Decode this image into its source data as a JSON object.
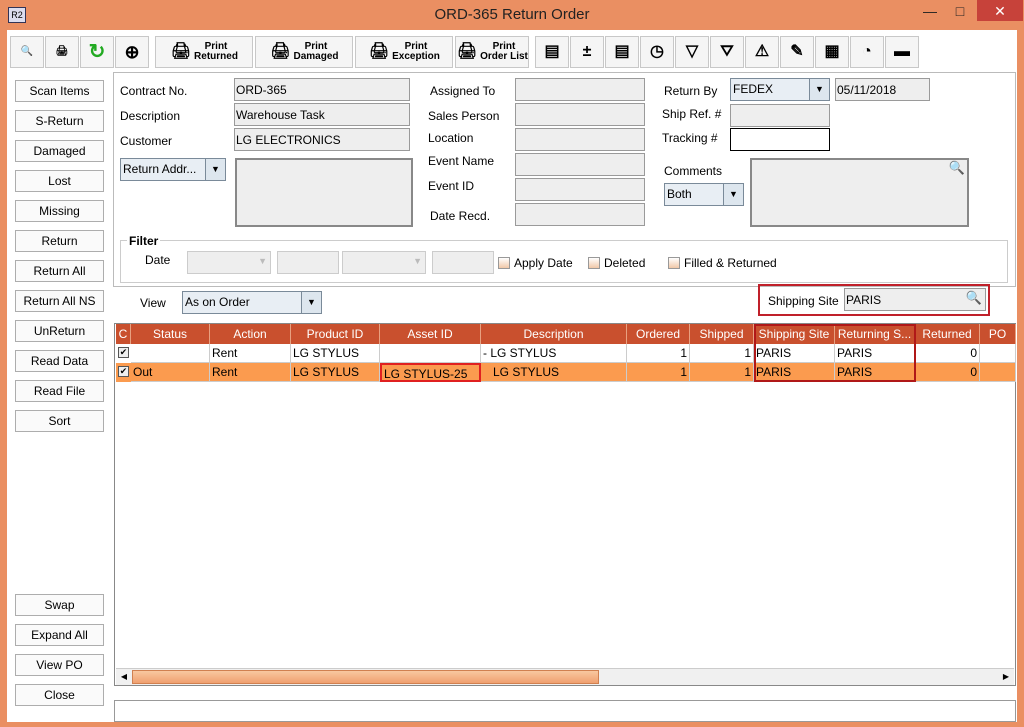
{
  "window": {
    "title": "ORD-365 Return Order",
    "app_icon": "R2"
  },
  "toolbar": {
    "icons": [
      "binoculars-icon",
      "printer-icon",
      "refresh-icon",
      "zoom-icon"
    ],
    "print_buttons": [
      [
        "Print",
        "Returned"
      ],
      [
        "Print",
        "Damaged"
      ],
      [
        "Print",
        "Exception"
      ],
      [
        "Print",
        "Order List"
      ]
    ],
    "right_icons": [
      "box-list-icon",
      "add-remove-icon",
      "box-alert-icon",
      "schedule-icon",
      "funnel-down-icon",
      "filter-check-icon",
      "warning-doc-icon",
      "notepad-edit-icon",
      "grid-select-icon",
      "clock-gauge-icon",
      "disabled-box-icon"
    ]
  },
  "sidebar": {
    "top": [
      "Scan Items",
      "S-Return",
      "Damaged",
      "Lost",
      "Missing",
      "Return",
      "Return All",
      "Return All NS",
      "UnReturn",
      "Read Data",
      "Read File",
      "Sort"
    ],
    "bottom": [
      "Swap",
      "Expand All",
      "View PO",
      "Close"
    ]
  },
  "form": {
    "contract_label": "Contract No.",
    "contract": "ORD-365",
    "description_label": "Description",
    "description": "Warehouse Task",
    "customer_label": "Customer",
    "customer": "LG ELECTRONICS",
    "address_combo": "Return Addr...",
    "assigned_label": "Assigned To",
    "sales_label": "Sales Person",
    "location_label": "Location",
    "event_name_label": "Event Name",
    "event_id_label": "Event ID",
    "date_recd_label": "Date Recd.",
    "return_by_label": "Return By",
    "return_by": "FEDEX",
    "return_date": "05/11/2018",
    "ship_ref_label": "Ship Ref. #",
    "tracking_label": "Tracking #",
    "comments_label": "Comments",
    "comments_combo": "Both"
  },
  "filter": {
    "title": "Filter",
    "date_label": "Date",
    "apply_date": "Apply Date",
    "deleted": "Deleted",
    "filled_returned": "Filled & Returned"
  },
  "view": {
    "label": "View",
    "value": "As on Order",
    "shipping_site_label": "Shipping Site",
    "shipping_site": "PARIS"
  },
  "grid": {
    "columns": [
      "C",
      "Status",
      "Action",
      "Product ID",
      "Asset ID",
      "Description",
      "Ordered",
      "Shipped",
      "Shipping Site",
      "Returning S...",
      "Returned",
      "PO"
    ],
    "rows": [
      [
        "✔",
        "",
        "Rent",
        "LG STYLUS",
        "",
        "- LG STYLUS",
        "1",
        "1",
        "PARIS",
        "PARIS",
        "0",
        ""
      ],
      [
        "✔",
        "Out",
        "Rent",
        "LG STYLUS",
        "LG STYLUS-25",
        "   LG STYLUS",
        "1",
        "1",
        "PARIS",
        "PARIS",
        "0",
        ""
      ]
    ]
  },
  "colors": {
    "accent": "#ea8f62",
    "header": "#c9502e",
    "selected_row": "#fb9b4f",
    "highlight": "#c0202a"
  }
}
